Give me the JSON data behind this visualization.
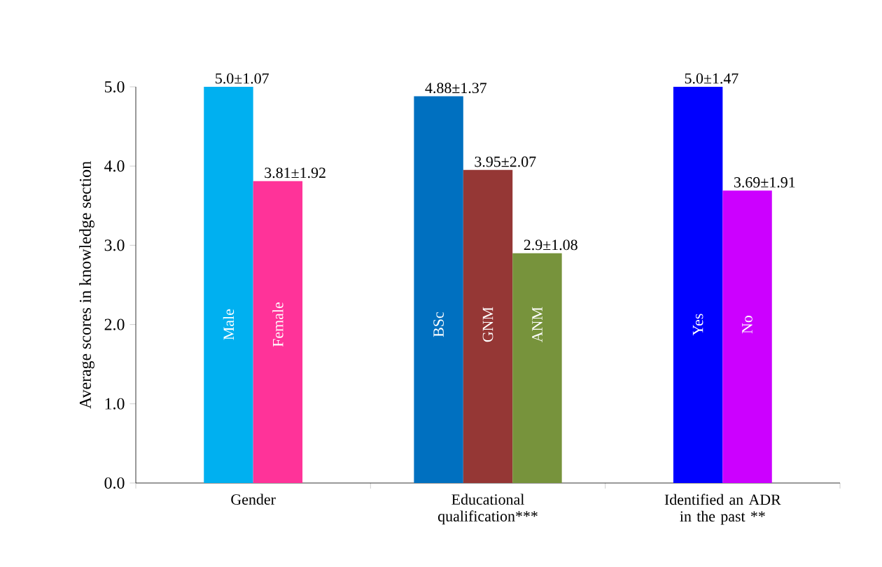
{
  "chart_data": {
    "type": "bar",
    "categories": [
      "Gender",
      "Educational qualification***",
      "Identified an ADR in the past **"
    ],
    "ylabel": "Average scores in knowledge section",
    "ylim": [
      0,
      5
    ],
    "yticks": [
      {
        "value": 0,
        "label": "0.0"
      },
      {
        "value": 1,
        "label": "1.0"
      },
      {
        "value": 2,
        "label": "2.0"
      },
      {
        "value": 3,
        "label": "3.0"
      },
      {
        "value": 4,
        "label": "4.0"
      },
      {
        "value": 5,
        "label": "5.0"
      }
    ],
    "series": [
      {
        "name": "Male",
        "color": "#00b0f0",
        "values": [
          5.0,
          null,
          null
        ],
        "value_labels": [
          "5.0±1.07",
          null,
          null
        ]
      },
      {
        "name": "Female",
        "color": "#ff3399",
        "values": [
          3.81,
          null,
          null
        ],
        "value_labels": [
          "3.81±1.92",
          null,
          null
        ]
      },
      {
        "name": "BSc",
        "color": "#0070c0",
        "values": [
          null,
          4.88,
          null
        ],
        "value_labels": [
          null,
          "4.88±1.37",
          null
        ]
      },
      {
        "name": "GNM",
        "color": "#953735",
        "values": [
          null,
          3.95,
          null
        ],
        "value_labels": [
          null,
          "3.95±2.07",
          null
        ]
      },
      {
        "name": "ANM",
        "color": "#77933c",
        "values": [
          null,
          2.9,
          null
        ],
        "value_labels": [
          null,
          "2.9±1.08",
          null
        ]
      },
      {
        "name": "Yes",
        "color": "#0000ff",
        "values": [
          null,
          null,
          5.0
        ],
        "value_labels": [
          null,
          null,
          "5.0±1.47"
        ]
      },
      {
        "name": "No",
        "color": "#cc00ff",
        "values": [
          null,
          null,
          3.69
        ],
        "value_labels": [
          null,
          null,
          "3.69±1.91"
        ]
      }
    ]
  }
}
